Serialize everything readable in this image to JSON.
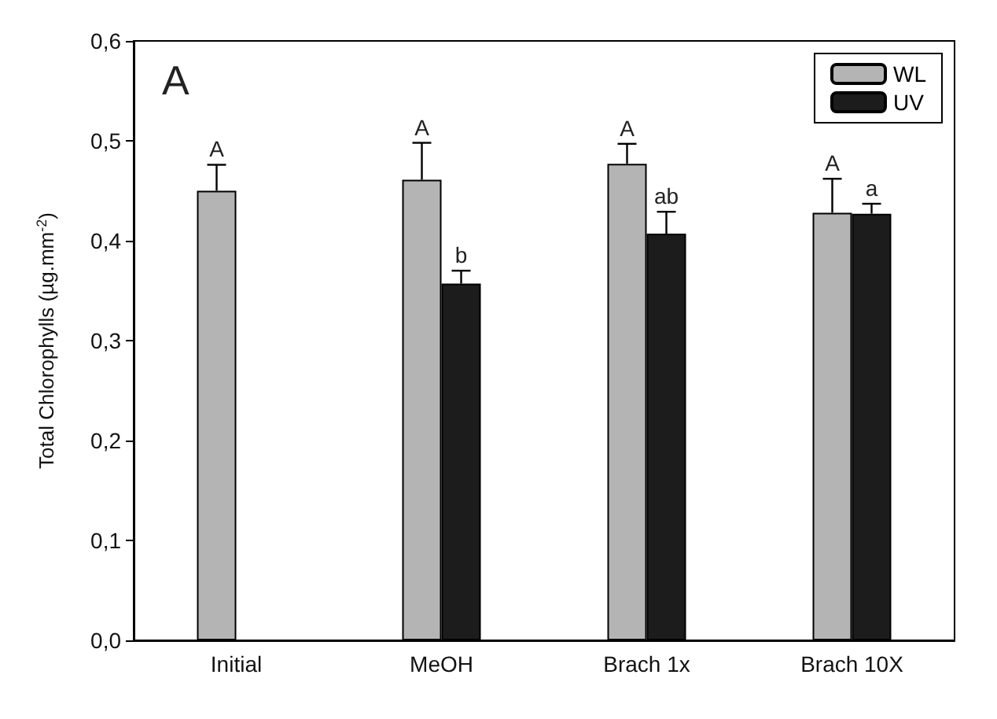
{
  "chart_data": {
    "type": "bar",
    "ylabel": "Total Chlorophylls (µg.mm$^{-2}$)",
    "categories": [
      "Initial",
      "MeOH",
      "Brach 1x",
      "Brach 10X"
    ],
    "series": [
      {
        "name": "WL",
        "color": "#b4b4b4",
        "values": [
          0.45,
          0.461,
          0.477,
          0.428
        ],
        "errors": [
          0.026,
          0.037,
          0.02,
          0.034
        ],
        "value_labels": [
          "A",
          "A",
          "A",
          "A"
        ]
      },
      {
        "name": "UV",
        "color": "#1c1c1c",
        "values": [
          null,
          0.357,
          0.407,
          0.427
        ],
        "errors": [
          null,
          0.013,
          0.022,
          0.01
        ],
        "value_labels": [
          null,
          "b",
          "ab",
          "a"
        ]
      }
    ],
    "ylim": [
      0,
      0.6
    ],
    "yticks": [
      {
        "value": 0,
        "label": "0,0"
      },
      {
        "value": 0.1,
        "label": "0,1"
      },
      {
        "value": 0.2,
        "label": "0,2"
      },
      {
        "value": 0.3,
        "label": "0,3"
      },
      {
        "value": 0.4,
        "label": "0,4"
      },
      {
        "value": 0.5,
        "label": "0,5"
      },
      {
        "value": 0.6,
        "label": "0,6"
      }
    ],
    "annotations": [
      "A"
    ],
    "legend": "top right",
    "grid": false
  }
}
